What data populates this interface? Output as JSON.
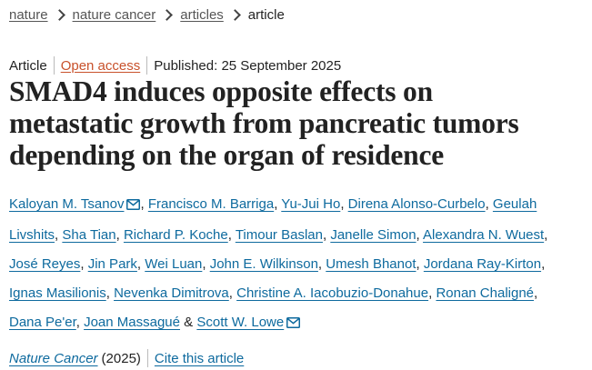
{
  "breadcrumb": {
    "items": [
      "nature",
      "nature cancer",
      "articles"
    ],
    "current": "article"
  },
  "meta": {
    "type": "Article",
    "open_access": "Open access",
    "published": "Published: 25 September 2025"
  },
  "title_lines": [
    "SMAD4 induces opposite effects on",
    "metastatic growth from pancreatic tumors",
    "depending on the organ of residence"
  ],
  "authors": [
    "Kaloyan M. Tsanov",
    "Francisco M. Barriga",
    "Yu-Jui Ho",
    "Direna Alonso-Curbelo",
    "Geulah Livshits",
    "Sha Tian",
    "Richard P. Koche",
    "Timour Baslan",
    "Janelle Simon",
    "Alexandra N. Wuest",
    "José Reyes",
    "Jin Park",
    "Wei Luan",
    "John E. Wilkinson",
    "Umesh Bhanot",
    "Jordana Ray-Kirton",
    "Ignas Masilionis",
    "Nevenka Dimitrova",
    "Christine A. Iacobuzio-Donahue",
    "Ronan Chaligné",
    "Dana Pe'er",
    "Joan Massagué",
    "Scott W. Lowe"
  ],
  "corresponding_authors": [
    0,
    22
  ],
  "author_final_separator": "&",
  "journal": {
    "name": "Nature Cancer",
    "year": "(2025)",
    "cite": "Cite this article"
  },
  "colors": {
    "link": "#0e6a9e",
    "open_access": "#c8512b",
    "text": "#222222",
    "breadcrumb_link": "#555555",
    "separator": "#bbbbbb"
  },
  "icons": {
    "breadcrumb_separator": "chevron-right-icon",
    "corresponding_author": "envelope-icon"
  }
}
